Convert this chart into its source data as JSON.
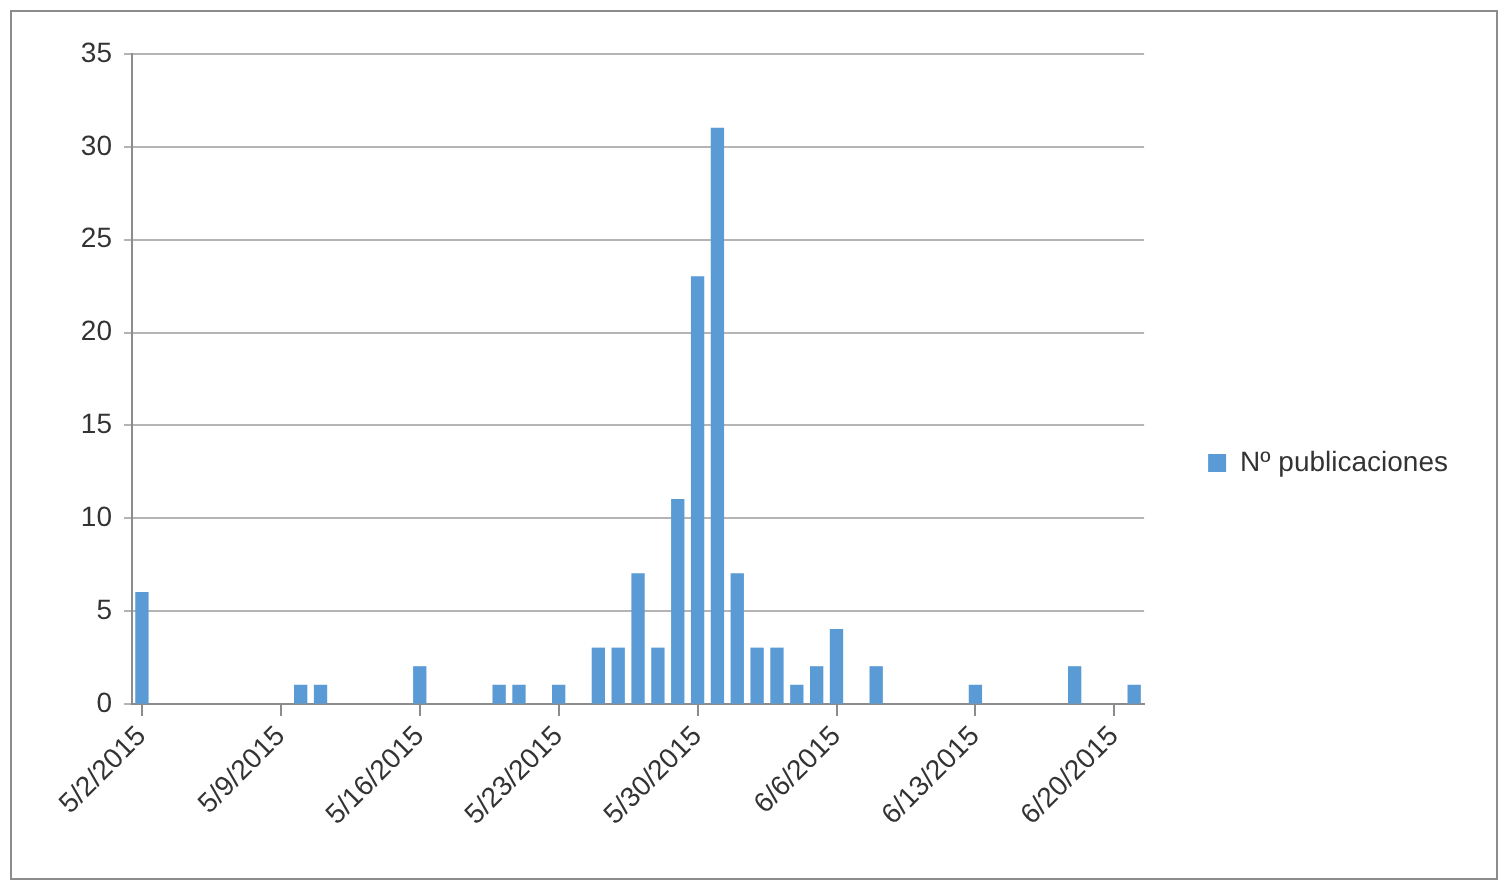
{
  "chart_data": {
    "type": "bar",
    "x": [
      "2015-05-02",
      "2015-05-10",
      "2015-05-11",
      "2015-05-16",
      "2015-05-20",
      "2015-05-21",
      "2015-05-23",
      "2015-05-25",
      "2015-05-26",
      "2015-05-27",
      "2015-05-28",
      "2015-05-29",
      "2015-05-30",
      "2015-05-31",
      "2015-06-01",
      "2015-06-02",
      "2015-06-03",
      "2015-06-04",
      "2015-06-05",
      "2015-06-06",
      "2015-06-08",
      "2015-06-13",
      "2015-06-18",
      "2015-06-21"
    ],
    "series": [
      {
        "name": "Nº publicaciones",
        "color": "#5b9bd5",
        "values": [
          6,
          1,
          1,
          2,
          1,
          1,
          1,
          3,
          3,
          7,
          3,
          11,
          23,
          31,
          7,
          3,
          3,
          1,
          2,
          4,
          2,
          1,
          2,
          1
        ]
      }
    ],
    "xlim": [
      "2015-05-01T12:00",
      "2015-06-21T12:00"
    ],
    "xticks": [
      {
        "value": "2015-05-02",
        "label": "5/2/2015"
      },
      {
        "value": "2015-05-09",
        "label": "5/9/2015"
      },
      {
        "value": "2015-05-16",
        "label": "5/16/2015"
      },
      {
        "value": "2015-05-23",
        "label": "5/23/2015"
      },
      {
        "value": "2015-05-30",
        "label": "5/30/2015"
      },
      {
        "value": "2015-06-06",
        "label": "6/6/2015"
      },
      {
        "value": "2015-06-13",
        "label": "6/13/2015"
      },
      {
        "value": "2015-06-20",
        "label": "6/20/2015"
      }
    ],
    "ylim": [
      0,
      35
    ],
    "yticks": [
      0,
      5,
      10,
      15,
      20,
      25,
      30,
      35
    ],
    "grid": "y",
    "legend": "right"
  }
}
